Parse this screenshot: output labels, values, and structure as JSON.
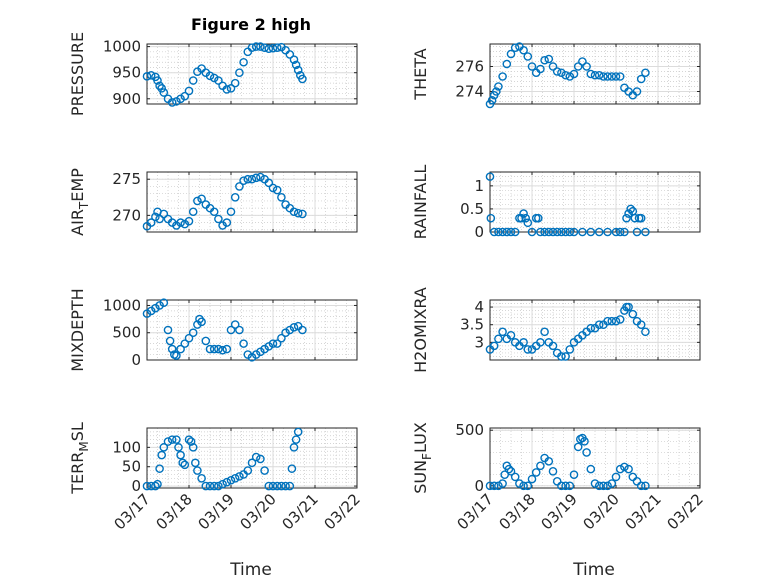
{
  "figure": {
    "title": "Figure 2 high",
    "x_label": "Time",
    "x_ticks": [
      "03/17",
      "03/18",
      "03/19",
      "03/20",
      "03/21",
      "03/22"
    ],
    "marker_color": "#0072BD"
  },
  "chart_data": [
    {
      "type": "scatter",
      "ylabel": "PRESSURE",
      "ylim": [
        890,
        1005
      ],
      "yticks": [
        900,
        950,
        1000
      ],
      "xlim": [
        0,
        5
      ],
      "grid": true,
      "marker": "open-circle",
      "x": [
        0.0,
        0.1,
        0.2,
        0.25,
        0.3,
        0.35,
        0.4,
        0.5,
        0.6,
        0.7,
        0.8,
        0.9,
        1.0,
        1.1,
        1.2,
        1.3,
        1.4,
        1.5,
        1.6,
        1.7,
        1.8,
        1.9,
        2.0,
        2.1,
        2.2,
        2.3,
        2.4,
        2.5,
        2.6,
        2.7,
        2.8,
        2.9,
        3.0,
        3.1,
        3.2,
        3.3,
        3.4,
        3.5,
        3.55,
        3.6,
        3.65,
        3.7
      ],
      "y": [
        943,
        945,
        942,
        935,
        925,
        920,
        912,
        900,
        893,
        895,
        900,
        905,
        915,
        935,
        952,
        958,
        950,
        944,
        940,
        935,
        925,
        918,
        920,
        930,
        950,
        970,
        990,
        998,
        1000,
        1000,
        998,
        996,
        997,
        998,
        999,
        993,
        985,
        975,
        965,
        955,
        945,
        938
      ]
    },
    {
      "type": "scatter",
      "ylabel": "THETA",
      "ylim": [
        273,
        277.8
      ],
      "yticks": [
        274,
        276
      ],
      "xlim": [
        0,
        5
      ],
      "grid": true,
      "marker": "open-circle",
      "x": [
        0.0,
        0.05,
        0.1,
        0.15,
        0.2,
        0.3,
        0.4,
        0.5,
        0.6,
        0.7,
        0.8,
        0.9,
        1.0,
        1.1,
        1.2,
        1.3,
        1.4,
        1.5,
        1.6,
        1.7,
        1.8,
        1.9,
        2.0,
        2.1,
        2.2,
        2.3,
        2.4,
        2.5,
        2.6,
        2.7,
        2.8,
        2.9,
        3.0,
        3.1,
        3.2,
        3.3,
        3.4,
        3.5,
        3.6,
        3.7
      ],
      "y": [
        273.0,
        273.3,
        273.7,
        274.0,
        274.4,
        275.2,
        276.2,
        277.0,
        277.5,
        277.6,
        277.3,
        276.8,
        276.0,
        275.5,
        275.8,
        276.5,
        276.6,
        276.0,
        275.6,
        275.5,
        275.3,
        275.2,
        275.4,
        276.0,
        276.4,
        276.0,
        275.4,
        275.3,
        275.3,
        275.2,
        275.2,
        275.2,
        275.2,
        275.2,
        274.3,
        274.0,
        273.7,
        274.0,
        275.0,
        275.5
      ]
    },
    {
      "type": "scatter",
      "ylabel": "AIR_TEMP",
      "ylim": [
        267.7,
        276
      ],
      "yticks": [
        270,
        275
      ],
      "xlim": [
        0,
        5
      ],
      "grid": true,
      "marker": "open-circle",
      "x": [
        0.0,
        0.1,
        0.2,
        0.25,
        0.3,
        0.4,
        0.5,
        0.6,
        0.7,
        0.8,
        0.9,
        1.0,
        1.1,
        1.2,
        1.3,
        1.4,
        1.5,
        1.6,
        1.7,
        1.8,
        1.9,
        2.0,
        2.1,
        2.2,
        2.3,
        2.4,
        2.5,
        2.6,
        2.7,
        2.8,
        2.9,
        3.0,
        3.1,
        3.2,
        3.3,
        3.4,
        3.5,
        3.6,
        3.7
      ],
      "y": [
        268.5,
        269.0,
        269.8,
        270.5,
        269.5,
        270.2,
        269.5,
        269.0,
        268.6,
        269.0,
        268.8,
        269.2,
        270.5,
        272.0,
        272.3,
        271.5,
        271.0,
        270.5,
        269.5,
        268.6,
        269.0,
        270.5,
        272.5,
        274.0,
        274.8,
        275.0,
        275.0,
        275.2,
        275.3,
        275.0,
        274.5,
        273.8,
        273.5,
        272.5,
        271.5,
        271.0,
        270.5,
        270.3,
        270.2
      ]
    },
    {
      "type": "scatter",
      "ylabel": "RAINFALL",
      "ylim": [
        0,
        1.3
      ],
      "yticks": [
        0,
        0.5,
        1
      ],
      "xlim": [
        0,
        5
      ],
      "grid": true,
      "marker": "open-circle",
      "x": [
        0.0,
        0.02,
        0.1,
        0.2,
        0.3,
        0.4,
        0.5,
        0.6,
        0.7,
        0.75,
        0.8,
        0.85,
        0.9,
        1.0,
        1.1,
        1.15,
        1.2,
        1.3,
        1.4,
        1.5,
        1.6,
        1.7,
        1.8,
        1.9,
        2.0,
        2.2,
        2.4,
        2.6,
        2.8,
        3.0,
        3.1,
        3.2,
        3.25,
        3.3,
        3.35,
        3.4,
        3.45,
        3.5,
        3.55,
        3.6,
        3.7
      ],
      "y": [
        1.2,
        0.3,
        0.0,
        0.0,
        0.0,
        0.0,
        0.0,
        0.0,
        0.3,
        0.3,
        0.4,
        0.3,
        0.2,
        0.0,
        0.3,
        0.3,
        0.0,
        0.0,
        0.0,
        0.0,
        0.0,
        0.0,
        0.0,
        0.0,
        0.0,
        0.0,
        0.0,
        0.0,
        0.0,
        0.0,
        0.0,
        0.0,
        0.3,
        0.4,
        0.5,
        0.45,
        0.3,
        0.0,
        0.3,
        0.3,
        0.0
      ]
    },
    {
      "type": "scatter",
      "ylabel": "MIXDEPTH",
      "ylim": [
        0,
        1100
      ],
      "yticks": [
        0,
        500,
        1000
      ],
      "xlim": [
        0,
        5
      ],
      "grid": true,
      "marker": "open-circle",
      "x": [
        0.0,
        0.1,
        0.2,
        0.3,
        0.4,
        0.5,
        0.55,
        0.6,
        0.65,
        0.7,
        0.8,
        0.9,
        1.0,
        1.1,
        1.2,
        1.25,
        1.3,
        1.4,
        1.5,
        1.6,
        1.7,
        1.8,
        1.9,
        2.0,
        2.1,
        2.2,
        2.3,
        2.4,
        2.5,
        2.6,
        2.7,
        2.8,
        2.9,
        3.0,
        3.1,
        3.2,
        3.3,
        3.4,
        3.5,
        3.6,
        3.7
      ],
      "y": [
        850,
        900,
        950,
        1000,
        1050,
        550,
        350,
        200,
        100,
        80,
        200,
        300,
        400,
        500,
        650,
        750,
        700,
        350,
        200,
        200,
        200,
        180,
        200,
        550,
        650,
        550,
        300,
        100,
        50,
        100,
        150,
        200,
        250,
        300,
        300,
        400,
        500,
        550,
        600,
        620,
        550
      ]
    },
    {
      "type": "scatter",
      "ylabel": "H2OMIXRA",
      "ylim": [
        2.5,
        4.2
      ],
      "yticks": [
        3,
        3.5,
        4
      ],
      "xlim": [
        0,
        5
      ],
      "grid": true,
      "marker": "open-circle",
      "x": [
        0.0,
        0.1,
        0.2,
        0.3,
        0.4,
        0.5,
        0.6,
        0.7,
        0.8,
        0.9,
        1.0,
        1.1,
        1.2,
        1.3,
        1.4,
        1.5,
        1.6,
        1.7,
        1.8,
        1.9,
        2.0,
        2.1,
        2.2,
        2.3,
        2.4,
        2.5,
        2.6,
        2.7,
        2.8,
        2.9,
        3.0,
        3.1,
        3.2,
        3.25,
        3.3,
        3.4,
        3.5,
        3.6,
        3.7
      ],
      "y": [
        2.8,
        2.9,
        3.1,
        3.3,
        3.1,
        3.2,
        3.0,
        2.9,
        3.0,
        2.8,
        2.8,
        2.9,
        3.0,
        3.3,
        3.0,
        2.9,
        2.7,
        2.6,
        2.6,
        2.8,
        3.0,
        3.1,
        3.2,
        3.3,
        3.4,
        3.4,
        3.5,
        3.5,
        3.6,
        3.6,
        3.6,
        3.65,
        3.9,
        4.0,
        4.0,
        3.8,
        3.6,
        3.5,
        3.3
      ]
    },
    {
      "type": "scatter",
      "ylabel": "TERR_MSL",
      "ylim": [
        -5,
        150
      ],
      "yticks": [
        0,
        50,
        100
      ],
      "xlim": [
        0,
        5
      ],
      "grid": true,
      "marker": "open-circle",
      "x": [
        0.0,
        0.1,
        0.2,
        0.25,
        0.3,
        0.35,
        0.4,
        0.5,
        0.6,
        0.7,
        0.75,
        0.8,
        0.85,
        0.9,
        1.0,
        1.05,
        1.1,
        1.15,
        1.2,
        1.3,
        1.4,
        1.5,
        1.6,
        1.7,
        1.8,
        1.9,
        2.0,
        2.1,
        2.2,
        2.3,
        2.4,
        2.5,
        2.6,
        2.7,
        2.8,
        2.9,
        3.0,
        3.1,
        3.2,
        3.3,
        3.4,
        3.45,
        3.5,
        3.55,
        3.6
      ],
      "y": [
        0,
        0,
        0,
        5,
        45,
        80,
        100,
        115,
        120,
        120,
        100,
        80,
        60,
        55,
        120,
        115,
        100,
        60,
        40,
        20,
        0,
        0,
        0,
        0,
        5,
        10,
        15,
        20,
        25,
        30,
        40,
        60,
        75,
        70,
        40,
        0,
        0,
        0,
        0,
        0,
        0,
        45,
        100,
        120,
        140
      ]
    },
    {
      "type": "scatter",
      "ylabel": "SUN_FLUX",
      "ylim": [
        -20,
        520
      ],
      "yticks": [
        0,
        500
      ],
      "xlim": [
        0,
        5
      ],
      "grid": true,
      "marker": "open-circle",
      "x": [
        0.0,
        0.1,
        0.2,
        0.3,
        0.35,
        0.4,
        0.45,
        0.5,
        0.6,
        0.7,
        0.8,
        0.9,
        1.0,
        1.1,
        1.2,
        1.3,
        1.4,
        1.5,
        1.6,
        1.7,
        1.8,
        1.9,
        2.0,
        2.1,
        2.15,
        2.2,
        2.25,
        2.3,
        2.4,
        2.5,
        2.6,
        2.7,
        2.8,
        2.9,
        3.0,
        3.1,
        3.2,
        3.3,
        3.4,
        3.5,
        3.6,
        3.7
      ],
      "y": [
        0,
        0,
        0,
        20,
        100,
        180,
        150,
        130,
        80,
        20,
        0,
        0,
        60,
        120,
        180,
        250,
        220,
        130,
        40,
        0,
        0,
        0,
        100,
        350,
        420,
        430,
        400,
        300,
        150,
        20,
        0,
        0,
        0,
        20,
        80,
        150,
        170,
        150,
        80,
        40,
        0,
        0
      ]
    }
  ]
}
